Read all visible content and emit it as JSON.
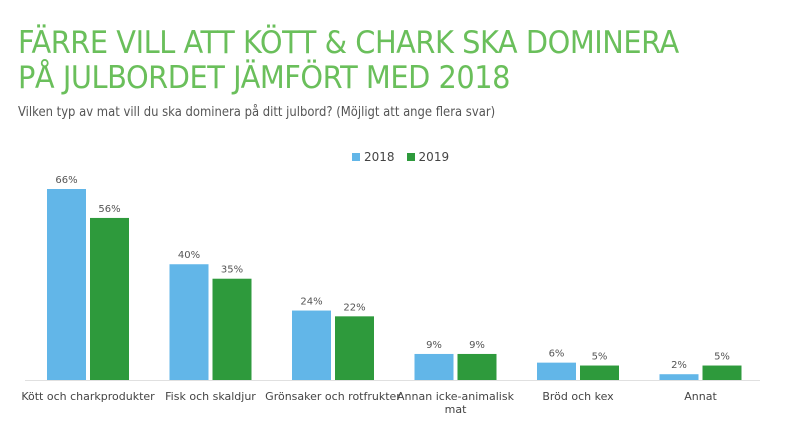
{
  "title_line1": "FÄRRE VILL ATT KÖTT & CHARK SKA DOMINERA",
  "title_line2": "PÅ JULBORDET JÄMFÖRT MED 2018",
  "subtitle": "Vilken typ av mat vill du ska dominera på ditt julbord? (Möjligt att ange flera svar)",
  "colors": {
    "title": "#6abf5b",
    "s2018": "#62b6e8",
    "s2019": "#2e9a3c"
  },
  "chart_data": {
    "type": "bar",
    "title": "FÄRRE VILL ATT KÖTT & CHARK SKA DOMINERA PÅ JULBORDET JÄMFÖRT MED 2018",
    "subtitle": "Vilken typ av mat vill du ska dominera på ditt julbord? (Möjligt att ange flera svar)",
    "categories": [
      [
        "Kött och charkprodukter"
      ],
      [
        "Fisk och skaldjur"
      ],
      [
        "Grönsaker och rotfrukter"
      ],
      [
        "Annan icke-animalisk",
        "mat"
      ],
      [
        "Bröd och kex"
      ],
      [
        "Annat"
      ]
    ],
    "series": [
      {
        "name": "2018",
        "values": [
          66,
          40,
          24,
          9,
          6,
          2
        ],
        "labels": [
          "66%",
          "40%",
          "24%",
          "9%",
          "6%",
          "2%"
        ]
      },
      {
        "name": "2019",
        "values": [
          56,
          35,
          22,
          9,
          5,
          5
        ],
        "labels": [
          "56%",
          "35%",
          "22%",
          "9%",
          "5%",
          "5%"
        ]
      }
    ],
    "ylim": [
      0,
      66
    ],
    "legend": "top-center",
    "grid": false,
    "xlabel": "",
    "ylabel": ""
  }
}
